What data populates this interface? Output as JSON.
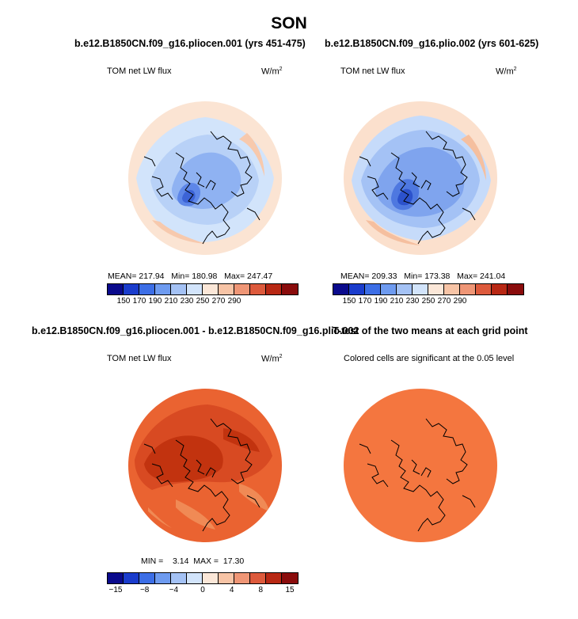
{
  "season": "SON",
  "panels": [
    {
      "title": "b.e12.B1850CN.f09_g16.pliocen.001 (yrs 451-475)",
      "variable": "TOM net LW flux",
      "units": "W/m",
      "units_sup": "2",
      "mean_label": "MEAN=",
      "mean": "217.94",
      "min_label": "Min=",
      "min": "180.98",
      "max_label": "Max=",
      "max": "247.47"
    },
    {
      "title": "b.e12.B1850CN.f09_g16.plio.002 (yrs 601-625)",
      "variable": "TOM net LW flux",
      "units": "W/m",
      "units_sup": "2",
      "mean_label": "MEAN=",
      "mean": "209.33",
      "min_label": "Min=",
      "min": "173.38",
      "max_label": "Max=",
      "max": "241.04"
    },
    {
      "title": "b.e12.B1850CN.f09_g16.pliocen.001 - b.e12.B1850CN.f09_g16.plio.002",
      "variable": "TOM net LW flux",
      "units": "W/m",
      "units_sup": "2",
      "min_label": "MIN =",
      "min": "3.14",
      "max_label": "MAX =",
      "max": "17.30"
    },
    {
      "title": "T-test of the two means at each grid point",
      "subtitle": "Colored cells are significant at the 0.05 level"
    }
  ],
  "colorbar_abs": {
    "ticks": [
      "150",
      "170",
      "190",
      "210",
      "230",
      "250",
      "270",
      "290"
    ],
    "colors": [
      "#0a0a8c",
      "#1a3ccc",
      "#3c6ee6",
      "#6e9bf0",
      "#a4c2f5",
      "#d2e4fb",
      "#fbe7d8",
      "#f7c4a6",
      "#ef9676",
      "#dd5a3c",
      "#b82814",
      "#8a0c0c"
    ]
  },
  "colorbar_diff": {
    "ticks": [
      "−15",
      "−8",
      "−4",
      "0",
      "4",
      "8",
      "15"
    ],
    "colors": [
      "#0a0a8c",
      "#1a3ccc",
      "#3c6ee6",
      "#6e9bf0",
      "#a4c2f5",
      "#d2e4fb",
      "#fbe7d8",
      "#f7c4a6",
      "#ef9676",
      "#dd5a3c",
      "#b82814",
      "#8a0c0c"
    ]
  },
  "map_colors": {
    "land_line": "#000000",
    "ttest_fill": "#f4763f",
    "diff_base": "#e9602f",
    "diff_dark": "#c7330f",
    "diff_light": "#f2874f"
  }
}
